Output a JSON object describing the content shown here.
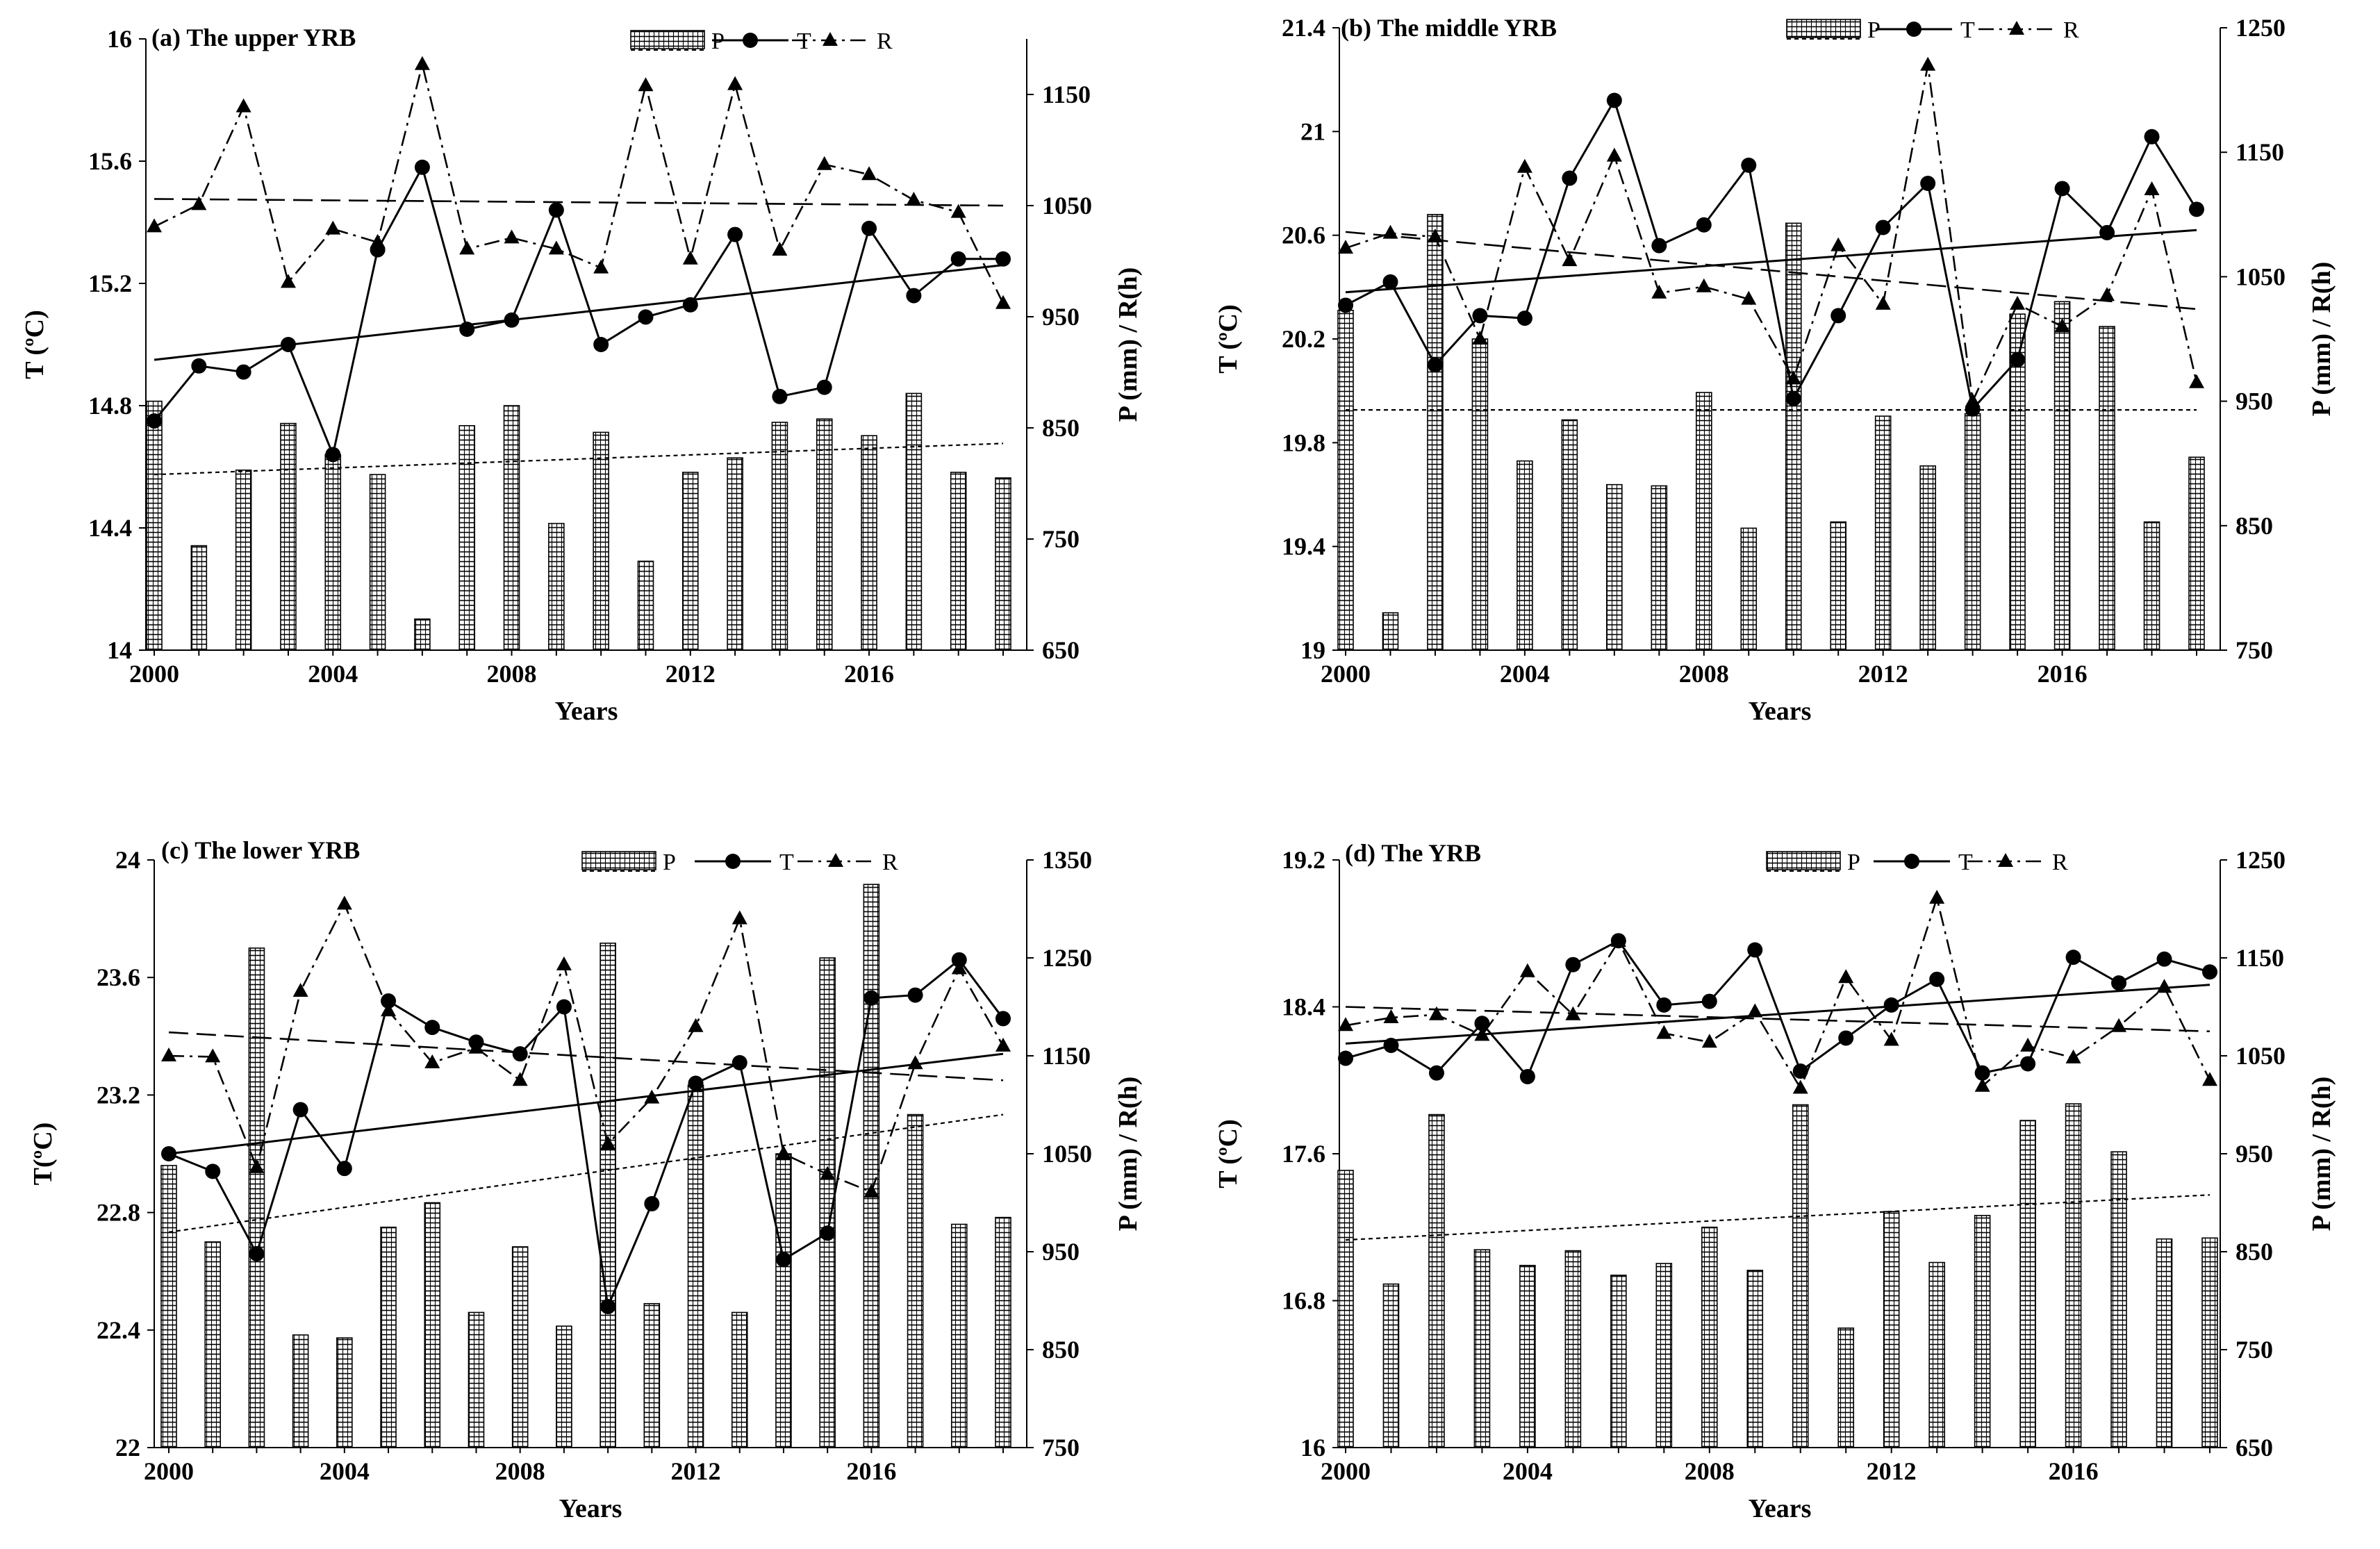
{
  "figure": {
    "colors": {
      "line": "#000000",
      "background": "#ffffff"
    },
    "legend_labels": {
      "P": "P",
      "T": "T",
      "R": "R"
    }
  },
  "chart_data": [
    {
      "type": "bar+line",
      "title": "(a) The upper YRB",
      "xlabel": "Years",
      "ylabel_left": "T (ºC)",
      "ylabel_right": "P (mm) / R(h)",
      "x_ticks": [
        2000,
        2004,
        2008,
        2012,
        2016
      ],
      "ylim_left": [
        14,
        16
      ],
      "yticks_left": [
        "14",
        "14.4",
        "14.8",
        "15.2",
        "15.6",
        "16"
      ],
      "ylim_right": [
        650,
        1200
      ],
      "yticks_right": [
        "650",
        "750",
        "850",
        "950",
        "1050",
        "1150"
      ],
      "years": [
        2000,
        2001,
        2002,
        2003,
        2004,
        2005,
        2006,
        2007,
        2008,
        2009,
        2010,
        2011,
        2012,
        2013,
        2014,
        2015,
        2016,
        2017,
        2018,
        2019
      ],
      "series": [
        {
          "name": "P",
          "kind": "bar",
          "axis": "right",
          "values": [
            874,
            744,
            812,
            854,
            826,
            808,
            678,
            852,
            870,
            764,
            846,
            730,
            810,
            823,
            855,
            858,
            843,
            881,
            810,
            805
          ]
        },
        {
          "name": "T",
          "kind": "line",
          "axis": "left",
          "values": [
            14.75,
            14.93,
            14.91,
            15.0,
            14.64,
            15.31,
            15.58,
            15.05,
            15.08,
            15.44,
            15.0,
            15.09,
            15.13,
            15.36,
            14.83,
            14.86,
            15.38,
            15.16,
            15.28,
            15.28
          ]
        },
        {
          "name": "R",
          "kind": "line",
          "axis": "right",
          "values": [
            1031,
            1051,
            1139,
            981,
            1029,
            1017,
            1177,
            1011,
            1021,
            1011,
            994,
            1158,
            1002,
            1159,
            1010,
            1087,
            1078,
            1055,
            1044,
            962
          ]
        }
      ],
      "trends": {
        "T": [
          14.95,
          15.26
        ],
        "P": [
          808,
          836
        ],
        "R": [
          1056,
          1050
        ]
      }
    },
    {
      "type": "bar+line",
      "title": "(b) The middle YRB",
      "xlabel": "Years",
      "ylabel_left": "T (ºC)",
      "ylabel_right": "P (mm) / R(h)",
      "x_ticks": [
        2000,
        2004,
        2008,
        2012,
        2016
      ],
      "ylim_left": [
        19,
        21.4
      ],
      "yticks_left": [
        "19",
        "19.4",
        "19.8",
        "20.2",
        "20.6",
        "21",
        "21.4"
      ],
      "ylim_right": [
        750,
        1250
      ],
      "yticks_right": [
        "750",
        "850",
        "950",
        "1050",
        "1150",
        "1250"
      ],
      "years": [
        2000,
        2001,
        2002,
        2003,
        2004,
        2005,
        2006,
        2007,
        2008,
        2009,
        2010,
        2011,
        2012,
        2013,
        2014,
        2015,
        2016,
        2017,
        2018,
        2019
      ],
      "series": [
        {
          "name": "P",
          "kind": "bar",
          "axis": "right",
          "values": [
            1023,
            780,
            1100,
            1000,
            902,
            935,
            883,
            882,
            957,
            848,
            1093,
            853,
            938,
            898,
            940,
            1020,
            1030,
            1010,
            853,
            905
          ]
        },
        {
          "name": "T",
          "kind": "line",
          "axis": "left",
          "values": [
            20.33,
            20.42,
            20.1,
            20.29,
            20.28,
            20.82,
            21.12,
            20.56,
            20.64,
            20.87,
            19.97,
            20.29,
            20.63,
            20.8,
            19.93,
            20.12,
            20.78,
            20.61,
            20.98,
            20.7
          ]
        },
        {
          "name": "R",
          "kind": "line",
          "axis": "right",
          "values": [
            1073,
            1085,
            1082,
            1000,
            1138,
            1063,
            1147,
            1037,
            1042,
            1032,
            968,
            1075,
            1028,
            1220,
            950,
            1028,
            1010,
            1035,
            1120,
            965
          ]
        }
      ],
      "trends": {
        "T": [
          20.38,
          20.62
        ],
        "P": [
          943,
          943
        ],
        "R": [
          1086,
          1024
        ]
      }
    },
    {
      "type": "bar+line",
      "title": "(c) The lower YRB",
      "xlabel": "Years",
      "ylabel_left": "T(ºC)",
      "ylabel_right": "P (mm) / R(h)",
      "x_ticks": [
        2000,
        2004,
        2008,
        2012,
        2016
      ],
      "ylim_left": [
        22,
        24
      ],
      "yticks_left": [
        "22",
        "22.4",
        "22.8",
        "23.2",
        "23.6",
        "24"
      ],
      "ylim_right": [
        750,
        1350
      ],
      "yticks_right": [
        "750",
        "850",
        "950",
        "1050",
        "1150",
        "1250",
        "1350"
      ],
      "years": [
        2000,
        2001,
        2002,
        2003,
        2004,
        2005,
        2006,
        2007,
        2008,
        2009,
        2010,
        2011,
        2012,
        2013,
        2014,
        2015,
        2016,
        2017,
        2018,
        2019
      ],
      "series": [
        {
          "name": "P",
          "kind": "bar",
          "axis": "right",
          "values": [
            1038,
            960,
            1260,
            865,
            862,
            975,
            1000,
            888,
            955,
            874,
            1265,
            897,
            1120,
            888,
            1050,
            1250,
            1325,
            1090,
            978,
            985
          ]
        },
        {
          "name": "T",
          "kind": "line",
          "axis": "left",
          "values": [
            23.0,
            22.94,
            22.66,
            23.15,
            22.95,
            23.52,
            23.43,
            23.38,
            23.34,
            23.5,
            22.48,
            22.83,
            23.24,
            23.31,
            22.64,
            22.73,
            23.53,
            23.54,
            23.66,
            23.46
          ]
        },
        {
          "name": "R",
          "kind": "line",
          "axis": "right",
          "values": [
            1150,
            1149,
            1036,
            1216,
            1305,
            1196,
            1143,
            1158,
            1125,
            1243,
            1060,
            1107,
            1180,
            1290,
            1050,
            1029,
            1011,
            1142,
            1239,
            1160
          ]
        }
      ],
      "trends": {
        "T": [
          23.0,
          23.34
        ],
        "P": [
          970,
          1090
        ],
        "R": [
          1174,
          1125
        ]
      }
    },
    {
      "type": "bar+line",
      "title": "(d) The  YRB",
      "xlabel": "Years",
      "ylabel_left": "T (ºC)",
      "ylabel_right": "P (mm) / R(h)",
      "x_ticks": [
        2000,
        2004,
        2008,
        2012,
        2016
      ],
      "ylim_left": [
        16,
        19.2
      ],
      "yticks_left": [
        "16",
        "16.8",
        "17.6",
        "18.4",
        "19.2"
      ],
      "ylim_right": [
        650,
        1250
      ],
      "yticks_right": [
        "650",
        "750",
        "850",
        "950",
        "1050",
        "1150",
        "1250"
      ],
      "years": [
        2000,
        2001,
        2002,
        2003,
        2004,
        2005,
        2006,
        2007,
        2008,
        2009,
        2010,
        2011,
        2012,
        2013,
        2014,
        2015,
        2016,
        2017,
        2018,
        2019
      ],
      "series": [
        {
          "name": "P",
          "kind": "bar",
          "axis": "right",
          "values": [
            933,
            817,
            990,
            852,
            836,
            851,
            826,
            838,
            875,
            831,
            1000,
            772,
            891,
            839,
            887,
            984,
            1001,
            952,
            863,
            864
          ]
        },
        {
          "name": "T",
          "kind": "line",
          "axis": "left",
          "values": [
            18.12,
            18.19,
            18.04,
            18.31,
            18.02,
            18.63,
            18.76,
            18.41,
            18.43,
            18.71,
            18.05,
            18.23,
            18.41,
            18.55,
            18.04,
            18.09,
            18.67,
            18.53,
            18.66,
            18.59
          ]
        },
        {
          "name": "R",
          "kind": "line",
          "axis": "right",
          "values": [
            1081,
            1089,
            1092,
            1071,
            1136,
            1092,
            1167,
            1073,
            1064,
            1095,
            1017,
            1130,
            1066,
            1211,
            1019,
            1060,
            1048,
            1080,
            1120,
            1025
          ]
        }
      ],
      "trends": {
        "T": [
          18.2,
          18.52
        ],
        "P": [
          862,
          908
        ],
        "R": [
          1100,
          1075
        ]
      }
    }
  ]
}
